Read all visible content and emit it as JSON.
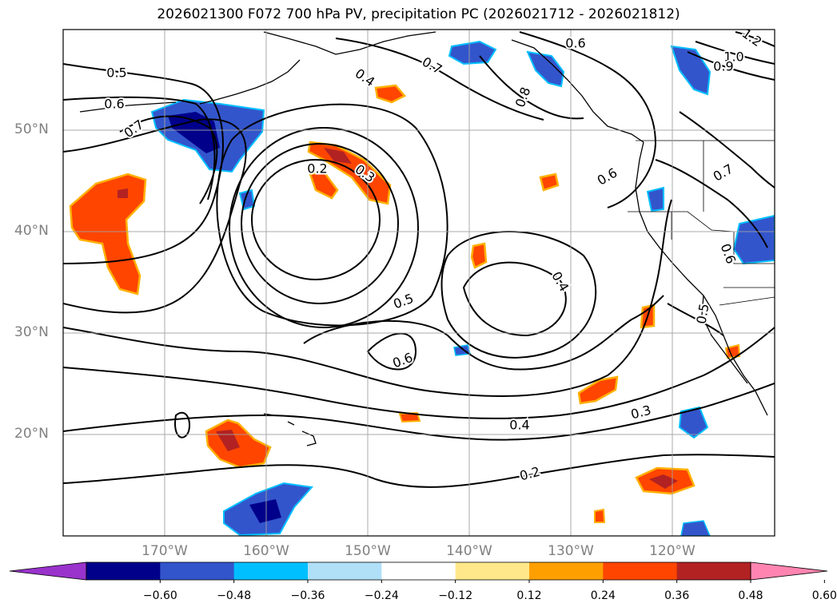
{
  "title": "2026021300 F072 700 hPa PV, precipitation PC (2026021712 - 2026021812)",
  "axes": {
    "lat_ticks": [
      "50°N",
      "40°N",
      "30°N",
      "20°N"
    ],
    "lon_ticks": [
      "170°W",
      "160°W",
      "150°W",
      "140°W",
      "130°W",
      "120°W"
    ]
  },
  "map": {
    "projection": "PlateCarree",
    "lon_range": [
      -180,
      -110
    ],
    "lat_range": [
      10,
      60
    ],
    "gridlines": true,
    "gridline_color": "#a0a0a0",
    "land_color": "#ffffff",
    "coastline_color": "#000000"
  },
  "contour_labels": [
    "0.5",
    "0.6",
    "0.7",
    "0.2",
    "0.3",
    "0.4",
    "0.7",
    "0.8",
    "0.6",
    "0.6",
    "0.4",
    "0.5",
    "0.6",
    "0.4",
    "0.3",
    "0.2",
    "1.0",
    "1.2",
    "0.9",
    "0.7",
    "0.6",
    "0.5"
  ],
  "colorbar": {
    "ticks": [
      "−0.60",
      "−0.48",
      "−0.36",
      "−0.24",
      "−0.12",
      "0.12",
      "0.24",
      "0.36",
      "0.48",
      "0.60"
    ],
    "colors": [
      "#9933cc",
      "#00008b",
      "#3355cc",
      "#00bfff",
      "#b0e0f8",
      "#ffffff",
      "#ffe88a",
      "#ff9f00",
      "#ff4500",
      "#b22222",
      "#ff85b0"
    ],
    "extend": "both"
  }
}
